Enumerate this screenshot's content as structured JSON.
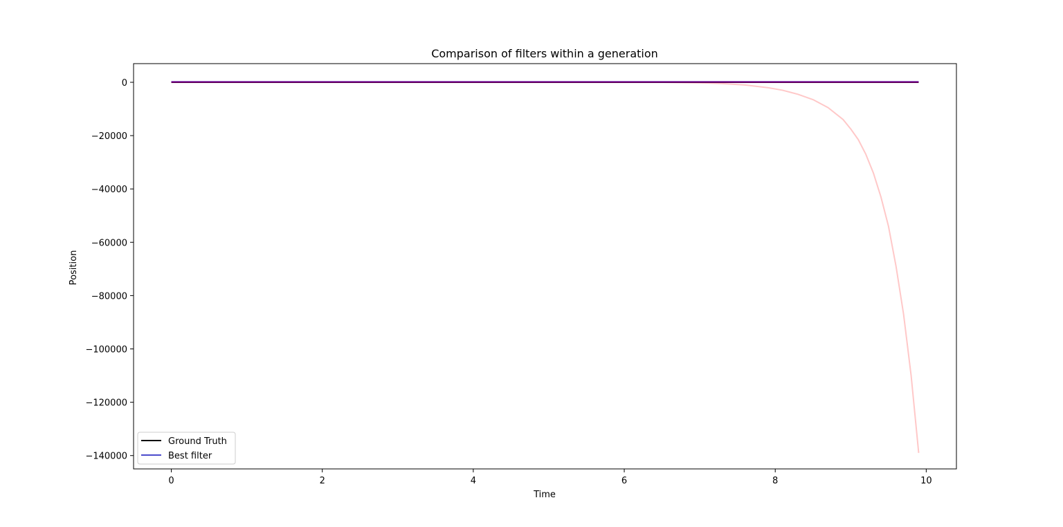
{
  "chart_data": {
    "type": "line",
    "title": "Comparison of filters within a generation",
    "xlabel": "Time",
    "ylabel": "Position",
    "xlim": [
      -0.5,
      10.4
    ],
    "ylim": [
      -145000,
      7000
    ],
    "xticks": [
      0,
      2,
      4,
      6,
      8,
      10
    ],
    "yticks": [
      0,
      -20000,
      -40000,
      -60000,
      -80000,
      -100000,
      -120000,
      -140000
    ],
    "grid": false,
    "legend_position": "lower-left",
    "series": [
      {
        "name": "",
        "color": "#ffc8c8",
        "x": [
          0,
          1,
          2,
          3,
          4,
          5,
          6,
          6.5,
          7,
          7.3,
          7.6,
          7.9,
          8.1,
          8.3,
          8.5,
          8.7,
          8.9,
          9.0,
          9.1,
          9.2,
          9.3,
          9.4,
          9.5,
          9.6,
          9.7,
          9.8,
          9.9
        ],
        "y": [
          0,
          0,
          0,
          0,
          0,
          0,
          0,
          0,
          -200,
          -500,
          -1000,
          -2000,
          -3000,
          -4500,
          -6500,
          -9500,
          -14000,
          -17500,
          -21500,
          -27000,
          -34000,
          -43000,
          -54000,
          -69000,
          -87000,
          -110000,
          -139000
        ]
      },
      {
        "name": "Ground Truth",
        "color": "#000000",
        "x": [
          0,
          9.9
        ],
        "y": [
          0,
          0
        ]
      },
      {
        "name": "Best filter",
        "color": "#4b4bcc",
        "x": [
          0,
          9.9
        ],
        "y": [
          200,
          200
        ]
      },
      {
        "name": "",
        "color": "#800080",
        "x": [
          0,
          9.9
        ],
        "y": [
          100,
          100
        ]
      }
    ]
  }
}
